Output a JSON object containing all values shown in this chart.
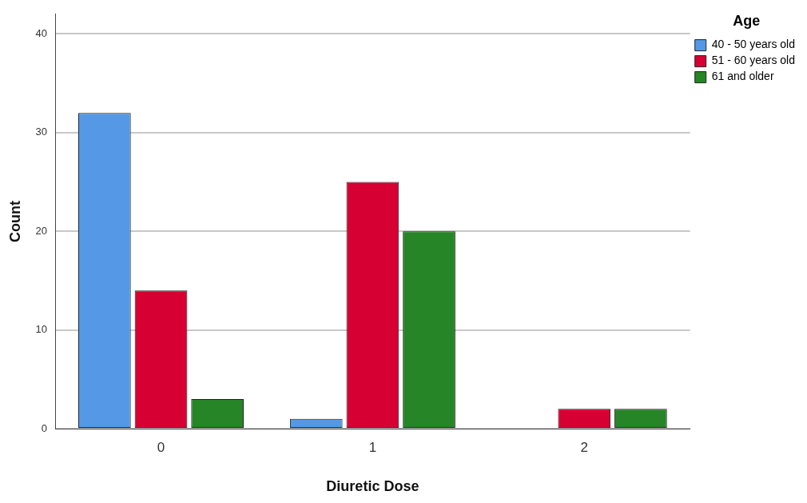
{
  "chart_data": {
    "type": "bar",
    "xlabel": "Diuretic Dose",
    "ylabel": "Count",
    "legend_title": "Age",
    "categories": [
      "0",
      "1",
      "2"
    ],
    "series": [
      {
        "name": "40 - 50 years old",
        "color": "#5599e6",
        "values": [
          32,
          1,
          0
        ]
      },
      {
        "name": "51 - 60 years old",
        "color": "#d70032",
        "values": [
          14,
          25,
          2
        ]
      },
      {
        "name": "61 and older",
        "color": "#268526",
        "values": [
          3,
          20,
          2
        ]
      }
    ],
    "ylim": [
      0,
      42
    ],
    "yticks": [
      0,
      10,
      20,
      30,
      40
    ],
    "grid": "y",
    "legend": "top right"
  }
}
